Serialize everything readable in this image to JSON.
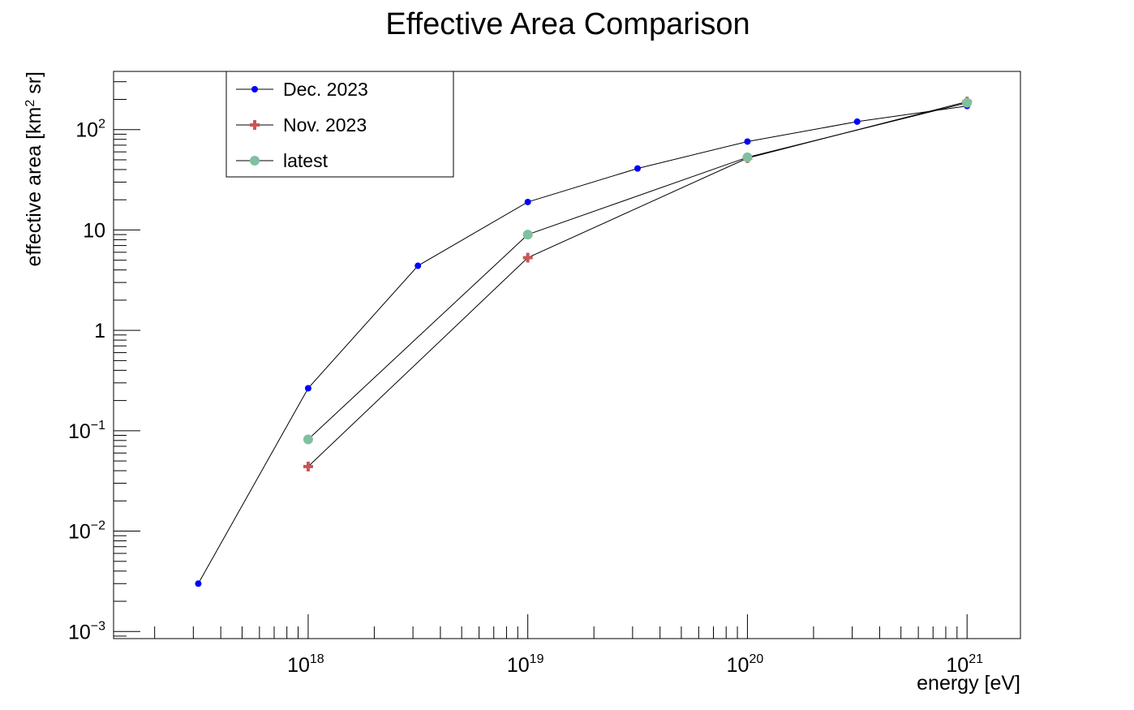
{
  "chart_data": {
    "type": "line",
    "title": "Effective Area Comparison",
    "xlabel": "energy [eV]",
    "ylabel_parts": [
      "effective area [km",
      "2",
      " sr]"
    ],
    "x_scale": "log",
    "y_scale": "log",
    "xlim": [
      1.3e+17,
      1.75e+21
    ],
    "ylim": [
      0.00085,
      380
    ],
    "grid": false,
    "legend_position": "top-left",
    "x_tick_labels": [
      {
        "value": 1e+18,
        "base": "10",
        "exp": "18"
      },
      {
        "value": 1e+19,
        "base": "10",
        "exp": "19"
      },
      {
        "value": 1e+20,
        "base": "10",
        "exp": "20"
      },
      {
        "value": 1e+21,
        "base": "10",
        "exp": "21"
      }
    ],
    "y_tick_labels": [
      {
        "value": 0.001,
        "base": "10",
        "exp": "−3"
      },
      {
        "value": 0.01,
        "base": "10",
        "exp": "−2"
      },
      {
        "value": 0.1,
        "base": "10",
        "exp": "−1"
      },
      {
        "value": 1,
        "base": "1",
        "exp": ""
      },
      {
        "value": 10,
        "base": "10",
        "exp": ""
      },
      {
        "value": 100,
        "base": "10",
        "exp": "2"
      }
    ],
    "series": [
      {
        "name": "Dec. 2023",
        "color": "#0000ff",
        "marker": "dot",
        "x": [
          3.16e+17,
          1e+18,
          3.16e+18,
          1e+19,
          3.16e+19,
          1e+20,
          3.16e+20,
          1e+21
        ],
        "y": [
          0.003,
          0.265,
          4.4,
          19,
          41,
          76,
          120,
          172
        ]
      },
      {
        "name": "Nov. 2023",
        "color": "#cc5555",
        "marker": "cross",
        "x": [
          1e+18,
          1e+19,
          1e+20,
          1e+21
        ],
        "y": [
          0.044,
          5.3,
          52,
          190
        ]
      },
      {
        "name": "latest",
        "color": "#80c0a0",
        "marker": "circle",
        "x": [
          1e+18,
          1e+19,
          1e+20,
          1e+21
        ],
        "y": [
          0.082,
          9,
          53,
          185
        ]
      }
    ]
  }
}
